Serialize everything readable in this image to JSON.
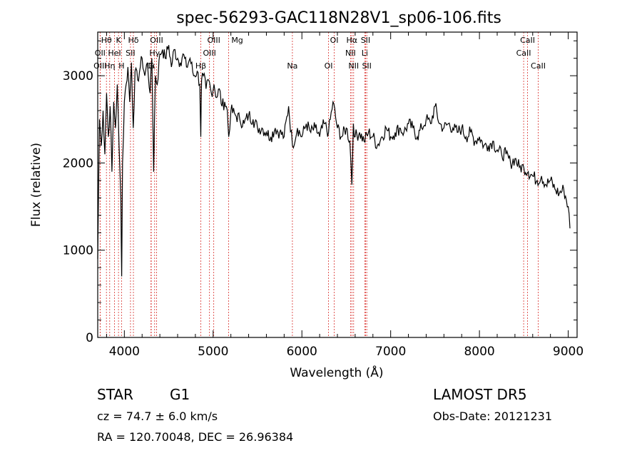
{
  "chart_data": {
    "type": "line",
    "title": "spec-56293-GAC118N28V1_sp06-106.fits",
    "xlabel": "Wavelength (Å)",
    "ylabel": "Flux (relative)",
    "xlim": [
      3700,
      9100
    ],
    "ylim": [
      0,
      3500
    ],
    "x_ticks": [
      4000,
      5000,
      6000,
      7000,
      8000,
      9000
    ],
    "y_ticks": [
      0,
      1000,
      2000,
      3000
    ],
    "grid": false,
    "series": [
      {
        "x": [
          3700,
          3720,
          3740,
          3760,
          3780,
          3800,
          3820,
          3840,
          3860,
          3880,
          3900,
          3920,
          3940,
          3960,
          3970,
          3980,
          4000,
          4020,
          4040,
          4060,
          4080,
          4100,
          4120,
          4150,
          4180,
          4200,
          4230,
          4260,
          4290,
          4310,
          4330,
          4340,
          4350,
          4370,
          4400,
          4430,
          4460,
          4500,
          4530,
          4560,
          4600,
          4630,
          4660,
          4700,
          4740,
          4780,
          4820,
          4850,
          4861,
          4870,
          4890,
          4920,
          4950,
          4980,
          5010,
          5040,
          5070,
          5100,
          5130,
          5160,
          5175,
          5200,
          5250,
          5300,
          5350,
          5400,
          5450,
          5500,
          5550,
          5600,
          5650,
          5700,
          5750,
          5800,
          5850,
          5893,
          5950,
          6000,
          6050,
          6100,
          6150,
          6200,
          6250,
          6300,
          6350,
          6400,
          6450,
          6500,
          6540,
          6563,
          6580,
          6600,
          6650,
          6700,
          6750,
          6800,
          6850,
          6900,
          6950,
          7000,
          7050,
          7100,
          7150,
          7200,
          7250,
          7300,
          7350,
          7400,
          7450,
          7500,
          7550,
          7600,
          7650,
          7700,
          7750,
          7800,
          7850,
          7900,
          7950,
          8000,
          8050,
          8100,
          8150,
          8200,
          8250,
          8300,
          8350,
          8400,
          8450,
          8500,
          8550,
          8600,
          8650,
          8700,
          8750,
          8800,
          8850,
          8900,
          8950,
          9000,
          9020
        ],
        "y": [
          900,
          2500,
          2200,
          2600,
          2100,
          2800,
          2300,
          2650,
          1900,
          2700,
          2400,
          2900,
          2200,
          1600,
          700,
          2000,
          2700,
          2900,
          3100,
          2700,
          3150,
          2400,
          3050,
          2950,
          3100,
          3200,
          3000,
          3150,
          2800,
          3200,
          1900,
          2500,
          3000,
          2900,
          3250,
          3300,
          3200,
          3350,
          3100,
          3300,
          3200,
          3150,
          3250,
          3100,
          3200,
          3000,
          3050,
          2900,
          2300,
          2950,
          3000,
          2850,
          2950,
          2800,
          2900,
          2750,
          2850,
          2650,
          2700,
          2600,
          2300,
          2600,
          2550,
          2500,
          2450,
          2550,
          2500,
          2400,
          2400,
          2350,
          2300,
          2400,
          2350,
          2300,
          2650,
          2200,
          2400,
          2300,
          2450,
          2350,
          2400,
          2300,
          2450,
          2350,
          2700,
          2400,
          2300,
          2400,
          2250,
          1750,
          2450,
          2300,
          2350,
          2250,
          2350,
          2300,
          2200,
          2300,
          2400,
          2300,
          2350,
          2400,
          2350,
          2450,
          2400,
          2300,
          2400,
          2500,
          2450,
          2650,
          2450,
          2400,
          2450,
          2400,
          2350,
          2400,
          2300,
          2350,
          2250,
          2300,
          2200,
          2200,
          2250,
          2150,
          2100,
          2100,
          2000,
          2050,
          1950,
          1950,
          1900,
          1850,
          1800,
          1850,
          1750,
          1800,
          1700,
          1650,
          1700,
          1500,
          1250
        ]
      }
    ],
    "lines": [
      {
        "label": "Hθ",
        "x": 3798
      },
      {
        "label": "OII",
        "x": 3727
      },
      {
        "label": "OIII",
        "x": 3727
      },
      {
        "label": "K",
        "x": 3934
      },
      {
        "label": "HeI",
        "x": 3889
      },
      {
        "label": "Hη",
        "x": 3835
      },
      {
        "label": "H",
        "x": 3968
      },
      {
        "label": "Hδ",
        "x": 4102
      },
      {
        "label": "SII",
        "x": 4069
      },
      {
        "label": "G",
        "x": 4303
      },
      {
        "label": "OIII",
        "x": 4363
      },
      {
        "label": "Hγ",
        "x": 4341
      },
      {
        "label": "Gι",
        "x": 4300
      },
      {
        "label": "OIII",
        "x": 5007
      },
      {
        "label": "OIII",
        "x": 4959
      },
      {
        "label": "Hβ",
        "x": 4861
      },
      {
        "label": "Mg",
        "x": 5175
      },
      {
        "label": "Na",
        "x": 5893
      },
      {
        "label": "OI",
        "x": 6300
      },
      {
        "label": "OI",
        "x": 6364
      },
      {
        "label": "Hα",
        "x": 6563
      },
      {
        "label": "NII",
        "x": 6548
      },
      {
        "label": "NII",
        "x": 6583
      },
      {
        "label": "SII",
        "x": 6717
      },
      {
        "label": "Li",
        "x": 6708
      },
      {
        "label": "SII",
        "x": 6731
      },
      {
        "label": "CaII",
        "x": 8542
      },
      {
        "label": "CaII",
        "x": 8498
      },
      {
        "label": "CaII",
        "x": 8662
      }
    ]
  },
  "info": {
    "object_class": "STAR",
    "subclass": "G1",
    "survey": "LAMOST DR5",
    "cz": "cz = 74.7 ± 6.0 km/s",
    "obs_date": "Obs-Date: 20121231",
    "coords": "RA = 120.70048, DEC =  26.96384"
  }
}
